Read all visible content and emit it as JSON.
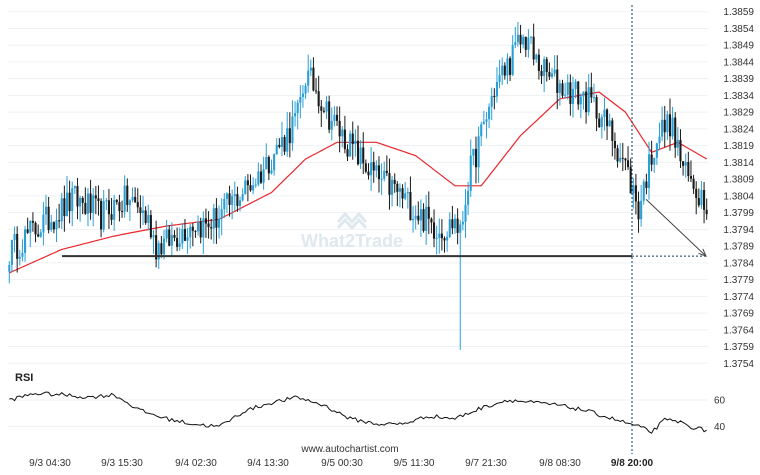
{
  "watermark": "What2Trade",
  "footer": "www.autochartist.com",
  "rsi_label": "RSI",
  "colors": {
    "candle_up": "#2a9fd6",
    "candle_down": "#1a1a1a",
    "ma": "#e8262b",
    "support": "#333333",
    "rsi": "#111111",
    "marker": "#0a3d62"
  },
  "chart_data": {
    "type": "candlestick",
    "ylim": [
      1.3752,
      1.3861
    ],
    "yticks": [
      "1.3859",
      "1.3854",
      "1.3849",
      "1.3844",
      "1.3839",
      "1.3834",
      "1.3829",
      "1.3824",
      "1.3819",
      "1.3814",
      "1.3809",
      "1.3804",
      "1.3799",
      "1.3794",
      "1.3789",
      "1.3784",
      "1.3779",
      "1.3774",
      "1.3769",
      "1.3764",
      "1.3759",
      "1.3754"
    ],
    "xticks": [
      "9/3 04:30",
      "9/3 15:30",
      "9/4 02:30",
      "9/4 13:30",
      "9/5 00:30",
      "9/5 11:30",
      "9/7 21:30",
      "9/8 08:30",
      "9/8 20:00"
    ],
    "highlight_xtick": "9/8 20:00",
    "support_level": 1.3786,
    "projection": {
      "from_price": 1.3803,
      "to_price": 1.3786
    },
    "price_anchors": [
      [
        0,
        1.3787
      ],
      [
        5,
        1.3791
      ],
      [
        10,
        1.3794
      ],
      [
        15,
        1.3797
      ],
      [
        20,
        1.38
      ],
      [
        25,
        1.3803
      ],
      [
        30,
        1.3801
      ],
      [
        35,
        1.3798
      ],
      [
        40,
        1.3801
      ],
      [
        45,
        1.3803
      ],
      [
        50,
        1.38
      ],
      [
        54,
        1.3795
      ],
      [
        56,
        1.3789
      ],
      [
        60,
        1.379
      ],
      [
        65,
        1.3793
      ],
      [
        70,
        1.3796
      ],
      [
        75,
        1.3795
      ],
      [
        80,
        1.3798
      ],
      [
        85,
        1.3802
      ],
      [
        90,
        1.3806
      ],
      [
        95,
        1.381
      ],
      [
        100,
        1.3816
      ],
      [
        105,
        1.3821
      ],
      [
        110,
        1.3828
      ],
      [
        113,
        1.384
      ],
      [
        117,
        1.3836
      ],
      [
        122,
        1.3828
      ],
      [
        127,
        1.3822
      ],
      [
        132,
        1.3817
      ],
      [
        137,
        1.3812
      ],
      [
        142,
        1.3808
      ],
      [
        147,
        1.3806
      ],
      [
        152,
        1.3802
      ],
      [
        157,
        1.3798
      ],
      [
        162,
        1.3795
      ],
      [
        167,
        1.3794
      ],
      [
        170,
        1.3797
      ],
      [
        172,
        1.3792
      ],
      [
        175,
        1.3809
      ],
      [
        180,
        1.3822
      ],
      [
        185,
        1.3836
      ],
      [
        190,
        1.3843
      ],
      [
        195,
        1.385
      ],
      [
        198,
        1.3851
      ],
      [
        200,
        1.3845
      ],
      [
        205,
        1.384
      ],
      [
        210,
        1.3837
      ],
      [
        215,
        1.3835
      ],
      [
        220,
        1.3833
      ],
      [
        225,
        1.3829
      ],
      [
        230,
        1.3822
      ],
      [
        235,
        1.3813
      ],
      [
        240,
        1.38
      ],
      [
        243,
        1.381
      ],
      [
        247,
        1.3822
      ],
      [
        252,
        1.3826
      ],
      [
        255,
        1.3818
      ],
      [
        258,
        1.381
      ],
      [
        262,
        1.3806
      ],
      [
        266,
        1.3803
      ]
    ],
    "ma_anchors": [
      [
        0,
        1.3781
      ],
      [
        20,
        1.3788
      ],
      [
        40,
        1.3792
      ],
      [
        60,
        1.3795
      ],
      [
        80,
        1.3797
      ],
      [
        100,
        1.3805
      ],
      [
        113,
        1.3815
      ],
      [
        125,
        1.382
      ],
      [
        140,
        1.382
      ],
      [
        155,
        1.3816
      ],
      [
        170,
        1.3807
      ],
      [
        180,
        1.3807
      ],
      [
        195,
        1.3822
      ],
      [
        210,
        1.3833
      ],
      [
        225,
        1.3835
      ],
      [
        235,
        1.3829
      ],
      [
        245,
        1.3817
      ],
      [
        255,
        1.382
      ],
      [
        266,
        1.3815
      ]
    ],
    "rsi_ylim": [
      30,
      75
    ],
    "rsi_yticks": [
      60,
      40
    ],
    "rsi_anchors": [
      [
        0,
        60
      ],
      [
        10,
        65
      ],
      [
        20,
        64
      ],
      [
        30,
        62
      ],
      [
        40,
        64
      ],
      [
        50,
        52
      ],
      [
        60,
        46
      ],
      [
        70,
        42
      ],
      [
        80,
        40
      ],
      [
        90,
        52
      ],
      [
        100,
        58
      ],
      [
        110,
        62
      ],
      [
        120,
        56
      ],
      [
        130,
        46
      ],
      [
        140,
        42
      ],
      [
        150,
        42
      ],
      [
        160,
        48
      ],
      [
        170,
        46
      ],
      [
        180,
        54
      ],
      [
        190,
        60
      ],
      [
        200,
        58
      ],
      [
        210,
        56
      ],
      [
        220,
        52
      ],
      [
        230,
        46
      ],
      [
        240,
        40
      ],
      [
        245,
        36
      ],
      [
        250,
        45
      ],
      [
        255,
        44
      ],
      [
        260,
        40
      ],
      [
        266,
        37
      ]
    ]
  }
}
